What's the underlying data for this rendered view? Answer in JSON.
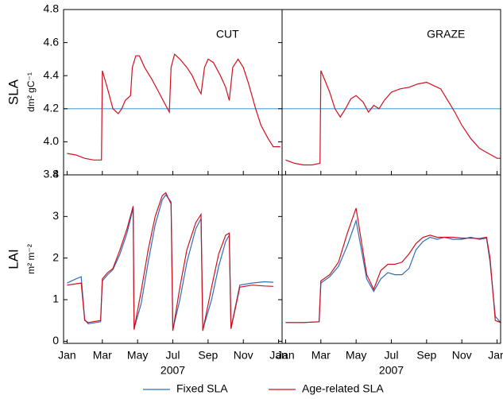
{
  "chart_data": [
    {
      "type": "line",
      "annotation": "CUT",
      "ylabel": "SLA",
      "yunit": "dm² gC⁻¹",
      "xlim": [
        -0.2,
        12.2
      ],
      "ylim": [
        3.8,
        4.8
      ],
      "yticks": [
        3.8,
        {
          "value": 4,
          "label": "4.0"
        },
        4.2,
        4.4,
        4.6,
        4.8
      ],
      "series": [
        {
          "color": "#4aa3cf",
          "x": [
            -0.2,
            12.2
          ],
          "values": [
            4.2,
            4.2
          ]
        },
        {
          "color": "#d0101e",
          "x": [
            0,
            0.5,
            1,
            1.5,
            1.95,
            2.0,
            2.3,
            2.6,
            2.9,
            3.1,
            3.3,
            3.6,
            3.7,
            3.9,
            4.1,
            4.4,
            4.8,
            5.2,
            5.6,
            5.8,
            5.9,
            6.1,
            6.4,
            6.8,
            7.1,
            7.4,
            7.6,
            7.8,
            8.0,
            8.3,
            8.7,
            9.0,
            9.2,
            9.4,
            9.7,
            10.0,
            10.3,
            10.7,
            11.0,
            11.4,
            11.7,
            12.1
          ],
          "values": [
            3.93,
            3.92,
            3.9,
            3.89,
            3.89,
            4.43,
            4.32,
            4.2,
            4.17,
            4.2,
            4.25,
            4.28,
            4.45,
            4.52,
            4.52,
            4.45,
            4.38,
            4.3,
            4.22,
            4.18,
            4.45,
            4.53,
            4.5,
            4.45,
            4.4,
            4.33,
            4.29,
            4.45,
            4.5,
            4.48,
            4.4,
            4.33,
            4.25,
            4.45,
            4.5,
            4.45,
            4.35,
            4.2,
            4.1,
            4.02,
            3.97,
            3.97
          ]
        }
      ]
    },
    {
      "type": "line",
      "annotation": "GRAZE",
      "xlim": [
        -0.2,
        12.2
      ],
      "ylim": [
        3.8,
        4.8
      ],
      "series": [
        {
          "color": "#4aa3cf",
          "x": [
            -0.2,
            12.2
          ],
          "values": [
            4.2,
            4.2
          ]
        },
        {
          "color": "#d0101e",
          "x": [
            0,
            0.5,
            1,
            1.5,
            1.95,
            2.0,
            2.2,
            2.5,
            2.8,
            3.1,
            3.4,
            3.7,
            4.0,
            4.4,
            4.7,
            5.0,
            5.3,
            5.6,
            6.0,
            6.5,
            7.0,
            7.5,
            8.0,
            8.4,
            8.8,
            9.2,
            9.6,
            10.0,
            10.5,
            11.0,
            11.5,
            12.0,
            12.2
          ],
          "values": [
            3.89,
            3.87,
            3.86,
            3.86,
            3.87,
            4.43,
            4.38,
            4.3,
            4.2,
            4.15,
            4.2,
            4.26,
            4.28,
            4.24,
            4.18,
            4.22,
            4.2,
            4.25,
            4.3,
            4.32,
            4.33,
            4.35,
            4.36,
            4.34,
            4.32,
            4.25,
            4.18,
            4.1,
            4.02,
            3.96,
            3.93,
            3.9,
            3.9
          ]
        }
      ]
    },
    {
      "type": "line",
      "ylabel": "LAI",
      "yunit": "m² m⁻²",
      "xlabel": "2007",
      "xlim": [
        -0.2,
        12.2
      ],
      "ylim": [
        -0.05,
        4
      ],
      "xticks": [
        {
          "value": 0,
          "label": "Jan"
        },
        {
          "value": 2,
          "label": "Mar"
        },
        {
          "value": 4,
          "label": "May"
        },
        {
          "value": 6,
          "label": "Jul"
        },
        {
          "value": 8,
          "label": "Sep"
        },
        {
          "value": 10,
          "label": "Nov"
        },
        {
          "value": 12,
          "label": "Jan"
        }
      ],
      "yticks": [
        0,
        1,
        2,
        3,
        4
      ],
      "x": [
        0,
        0.5,
        0.8,
        1.0,
        1.2,
        1.9,
        2.0,
        2.3,
        2.6,
        3.0,
        3.4,
        3.75,
        3.8,
        4.2,
        4.6,
        5.0,
        5.4,
        5.6,
        5.9,
        6.0,
        6.4,
        6.8,
        7.3,
        7.6,
        7.7,
        8.2,
        8.6,
        9.0,
        9.2,
        9.3,
        9.8,
        10.5,
        11.2,
        11.7
      ],
      "series": [
        {
          "name": "Fixed SLA",
          "color": "#2f6fb8",
          "values": [
            1.4,
            1.5,
            1.55,
            0.52,
            0.42,
            0.47,
            1.45,
            1.6,
            1.72,
            2.1,
            2.6,
            3.2,
            0.3,
            0.9,
            1.9,
            2.8,
            3.4,
            3.52,
            3.35,
            0.28,
            1.0,
            1.9,
            2.7,
            2.95,
            0.28,
            1.0,
            1.8,
            2.4,
            2.55,
            0.32,
            1.35,
            1.4,
            1.43,
            1.42
          ]
        },
        {
          "name": "Age-related SLA",
          "color": "#d0101e",
          "values": [
            1.35,
            1.38,
            1.4,
            0.5,
            0.45,
            0.5,
            1.5,
            1.65,
            1.75,
            2.2,
            2.7,
            3.25,
            0.28,
            1.2,
            2.2,
            3.0,
            3.5,
            3.57,
            3.3,
            0.25,
            1.3,
            2.2,
            2.85,
            3.05,
            0.25,
            1.3,
            2.1,
            2.55,
            2.6,
            0.3,
            1.3,
            1.35,
            1.33,
            1.32
          ]
        }
      ]
    },
    {
      "type": "line",
      "xlabel": "2007",
      "xlim": [
        -0.2,
        12.2
      ],
      "ylim": [
        -0.05,
        4
      ],
      "xticks": [
        {
          "value": 0,
          "label": "Jan"
        },
        {
          "value": 2,
          "label": "Mar"
        },
        {
          "value": 4,
          "label": "May"
        },
        {
          "value": 6,
          "label": "Jul"
        },
        {
          "value": 8,
          "label": "Sep"
        },
        {
          "value": 10,
          "label": "Nov"
        },
        {
          "value": 12,
          "label": "Jan"
        }
      ],
      "x": [
        0,
        1,
        1.9,
        2.0,
        2.5,
        3.0,
        3.5,
        4.0,
        4.3,
        4.6,
        5.0,
        5.4,
        5.8,
        6.2,
        6.6,
        7.0,
        7.4,
        7.8,
        8.2,
        8.6,
        9.0,
        9.5,
        10,
        10.5,
        11,
        11.4,
        11.6,
        11.9,
        12.2
      ],
      "series": [
        {
          "color": "#2f6fb8",
          "values": [
            0.45,
            0.45,
            0.47,
            1.4,
            1.55,
            1.8,
            2.3,
            2.9,
            2.2,
            1.5,
            1.2,
            1.5,
            1.65,
            1.6,
            1.6,
            1.75,
            2.2,
            2.4,
            2.5,
            2.45,
            2.5,
            2.45,
            2.45,
            2.5,
            2.45,
            2.48,
            1.9,
            0.6,
            0.45
          ]
        },
        {
          "color": "#d0101e",
          "values": [
            0.45,
            0.45,
            0.47,
            1.45,
            1.6,
            1.9,
            2.6,
            3.2,
            2.4,
            1.6,
            1.25,
            1.7,
            1.85,
            1.85,
            1.9,
            2.1,
            2.35,
            2.5,
            2.55,
            2.5,
            2.5,
            2.5,
            2.48,
            2.48,
            2.47,
            2.5,
            2.0,
            0.5,
            0.45
          ]
        }
      ]
    }
  ]
}
